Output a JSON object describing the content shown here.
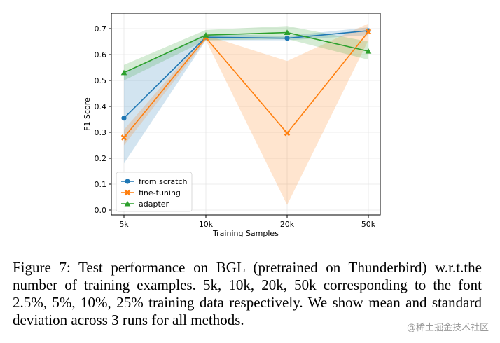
{
  "chart_data": {
    "type": "line",
    "title": "",
    "xlabel": "Training Samples",
    "ylabel": "F1 Score",
    "categories": [
      "5k",
      "10k",
      "20k",
      "50k"
    ],
    "ylim": [
      -0.02,
      0.75
    ],
    "yticks": [
      "0.0",
      "0.1",
      "0.2",
      "0.3",
      "0.4",
      "0.5",
      "0.6",
      "0.7"
    ],
    "grid": true,
    "legend_position": "lower-left",
    "series": [
      {
        "name": "from scratch",
        "color": "#1f77b4",
        "marker": "circle",
        "values": [
          0.355,
          0.667,
          0.663,
          0.692
        ],
        "lower": [
          0.18,
          0.655,
          0.655,
          0.675
        ],
        "upper": [
          0.53,
          0.68,
          0.672,
          0.705
        ]
      },
      {
        "name": "fine-tuning",
        "color": "#ff7f0e",
        "marker": "x",
        "values": [
          0.28,
          0.665,
          0.297,
          0.688
        ],
        "lower": [
          0.25,
          0.655,
          0.02,
          0.655
        ],
        "upper": [
          0.31,
          0.675,
          0.575,
          0.72
        ]
      },
      {
        "name": "adapter",
        "color": "#2ca02c",
        "marker": "triangle",
        "values": [
          0.53,
          0.675,
          0.685,
          0.613
        ],
        "lower": [
          0.5,
          0.655,
          0.66,
          0.58
        ],
        "upper": [
          0.56,
          0.695,
          0.71,
          0.65
        ]
      }
    ]
  },
  "caption": {
    "text": "Figure 7: Test performance on BGL (pretrained on Thunderbird) w.r.t.the number of training examples. 5k, 10k, 20k, 50k corresponding to the font 2.5%, 5%, 10%, 25% training data respectively. We show mean and standard deviation across 3 runs for all methods."
  },
  "watermark": "@稀土掘金技术社区"
}
